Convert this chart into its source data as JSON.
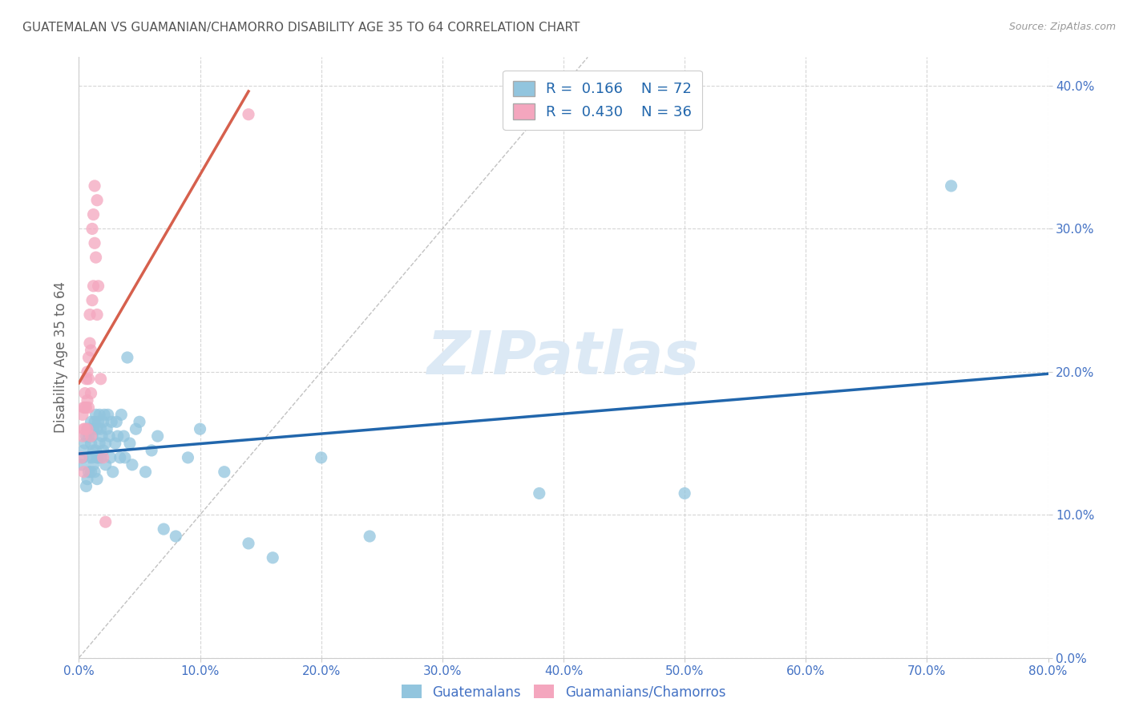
{
  "title": "GUATEMALAN VS GUAMANIAN/CHAMORRO DISABILITY AGE 35 TO 64 CORRELATION CHART",
  "source": "Source: ZipAtlas.com",
  "ylabel_label": "Disability Age 35 to 64",
  "x_min": 0.0,
  "x_max": 0.8,
  "y_min": 0.0,
  "y_max": 0.42,
  "legend_R1": "0.166",
  "legend_N1": "72",
  "legend_R2": "0.430",
  "legend_N2": "36",
  "blue_color": "#92c5de",
  "pink_color": "#f4a6be",
  "regression_blue": "#2166ac",
  "regression_pink": "#d6604d",
  "identity_color": "#bbbbbb",
  "background_color": "#ffffff",
  "grid_color": "#cccccc",
  "title_color": "#555555",
  "axis_label_color": "#666666",
  "tick_label_color": "#4472c4",
  "watermark_color": "#dce9f5",
  "guatemalan_x": [
    0.002,
    0.003,
    0.004,
    0.005,
    0.006,
    0.006,
    0.007,
    0.007,
    0.008,
    0.008,
    0.009,
    0.009,
    0.01,
    0.01,
    0.01,
    0.011,
    0.011,
    0.012,
    0.012,
    0.012,
    0.013,
    0.013,
    0.014,
    0.014,
    0.015,
    0.015,
    0.015,
    0.016,
    0.016,
    0.017,
    0.017,
    0.018,
    0.018,
    0.019,
    0.02,
    0.02,
    0.021,
    0.022,
    0.022,
    0.023,
    0.024,
    0.025,
    0.026,
    0.027,
    0.028,
    0.03,
    0.031,
    0.032,
    0.034,
    0.035,
    0.037,
    0.038,
    0.04,
    0.042,
    0.044,
    0.047,
    0.05,
    0.055,
    0.06,
    0.065,
    0.07,
    0.08,
    0.09,
    0.1,
    0.12,
    0.14,
    0.16,
    0.2,
    0.24,
    0.38,
    0.5,
    0.72
  ],
  "guatemalan_y": [
    0.135,
    0.14,
    0.145,
    0.15,
    0.12,
    0.155,
    0.125,
    0.16,
    0.13,
    0.155,
    0.14,
    0.16,
    0.15,
    0.165,
    0.13,
    0.155,
    0.14,
    0.16,
    0.145,
    0.135,
    0.165,
    0.13,
    0.17,
    0.145,
    0.16,
    0.14,
    0.125,
    0.165,
    0.14,
    0.17,
    0.15,
    0.16,
    0.14,
    0.155,
    0.165,
    0.145,
    0.17,
    0.15,
    0.135,
    0.16,
    0.17,
    0.155,
    0.14,
    0.165,
    0.13,
    0.15,
    0.165,
    0.155,
    0.14,
    0.17,
    0.155,
    0.14,
    0.21,
    0.15,
    0.135,
    0.16,
    0.165,
    0.13,
    0.145,
    0.155,
    0.09,
    0.085,
    0.14,
    0.16,
    0.13,
    0.08,
    0.07,
    0.14,
    0.085,
    0.115,
    0.115,
    0.33
  ],
  "guamanian_x": [
    0.002,
    0.003,
    0.003,
    0.004,
    0.004,
    0.004,
    0.005,
    0.005,
    0.005,
    0.006,
    0.006,
    0.007,
    0.007,
    0.007,
    0.008,
    0.008,
    0.008,
    0.009,
    0.009,
    0.01,
    0.01,
    0.01,
    0.011,
    0.011,
    0.012,
    0.012,
    0.013,
    0.013,
    0.014,
    0.015,
    0.015,
    0.016,
    0.018,
    0.02,
    0.022,
    0.14
  ],
  "guamanian_y": [
    0.14,
    0.155,
    0.17,
    0.16,
    0.175,
    0.13,
    0.16,
    0.175,
    0.185,
    0.175,
    0.195,
    0.16,
    0.18,
    0.2,
    0.195,
    0.21,
    0.175,
    0.24,
    0.22,
    0.155,
    0.185,
    0.215,
    0.25,
    0.3,
    0.26,
    0.31,
    0.29,
    0.33,
    0.28,
    0.32,
    0.24,
    0.26,
    0.195,
    0.14,
    0.095,
    0.38
  ]
}
